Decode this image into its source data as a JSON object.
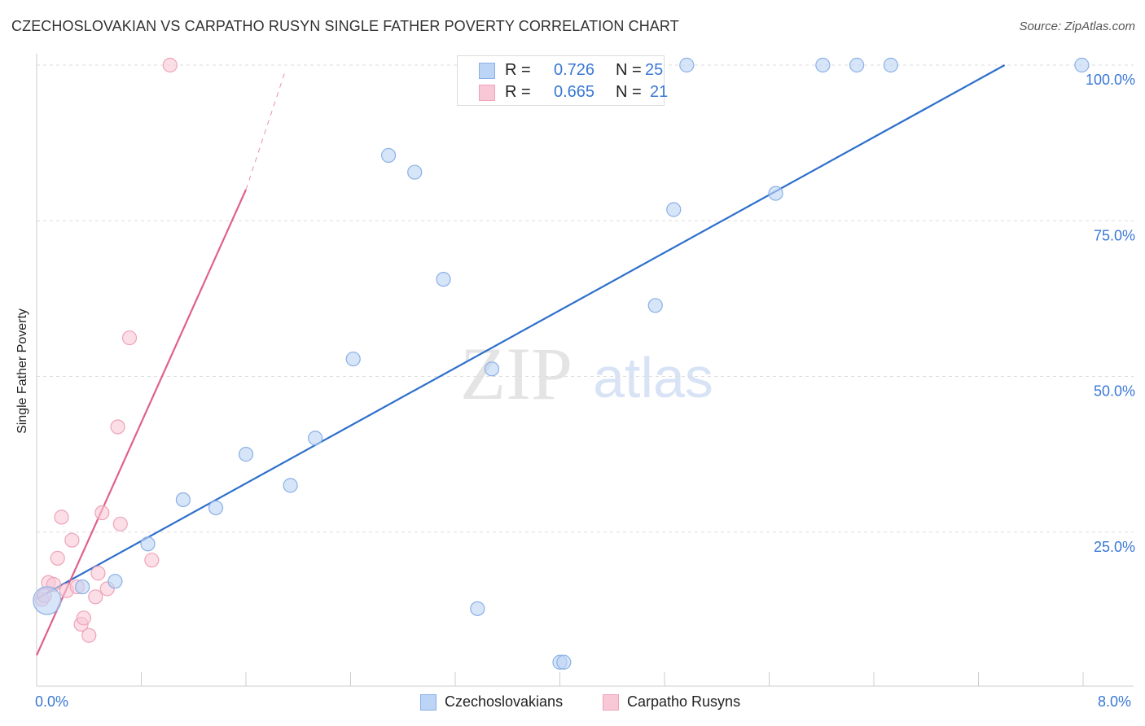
{
  "title": "CZECHOSLOVAKIAN VS CARPATHO RUSYN SINGLE FATHER POVERTY CORRELATION CHART",
  "source": "Source: ZipAtlas.com",
  "watermark": {
    "zip": "ZIP",
    "atlas": "atlas"
  },
  "colors": {
    "blue_fill": "#bcd4f5",
    "blue_stroke": "#8ab0e6",
    "blue_line": "#2d6fcc",
    "pink_fill": "#f9c8d6",
    "pink_stroke": "#eea3b9",
    "pink_line": "#e0608c",
    "accent_text": "#3a78d4",
    "grid": "#dddddd"
  },
  "legend": {
    "rows": [
      {
        "r_label": "R =",
        "r_value": "0.726",
        "n_label": "N =",
        "n_value": "25",
        "series": "blue"
      },
      {
        "r_label": "R =",
        "r_value": "0.665",
        "n_label": "N =",
        "n_value": "21",
        "series": "pink"
      }
    ]
  },
  "bottom_legend": [
    {
      "label": "Czechoslovakians",
      "series": "blue"
    },
    {
      "label": "Carpatho Rusyns",
      "series": "pink"
    }
  ],
  "x_axis_labels": {
    "min": "0.0%",
    "max": "8.0%"
  },
  "chart_data": {
    "type": "scatter",
    "title": "CZECHOSLOVAKIAN VS CARPATHO RUSYN SINGLE FATHER POVERTY CORRELATION CHART",
    "xlabel": "",
    "ylabel": "Single Father Poverty",
    "xlim": [
      0,
      8.0
    ],
    "ylim": [
      0,
      102
    ],
    "y_ticks": [
      25,
      50,
      75,
      100
    ],
    "y_tick_labels": [
      "25.0%",
      "50.0%",
      "75.0%",
      "100.0%"
    ],
    "x_tick_labels": [
      "0.0%",
      "8.0%"
    ],
    "grid": true,
    "series": [
      {
        "name": "Czechoslovakians",
        "color": "blue",
        "points": [
          {
            "x": 0.08,
            "y": 14.0,
            "big": true
          },
          {
            "x": 0.35,
            "y": 16.2
          },
          {
            "x": 0.6,
            "y": 17.1
          },
          {
            "x": 0.85,
            "y": 23.1
          },
          {
            "x": 1.12,
            "y": 30.2
          },
          {
            "x": 1.37,
            "y": 28.9
          },
          {
            "x": 1.6,
            "y": 37.5
          },
          {
            "x": 1.94,
            "y": 32.5
          },
          {
            "x": 2.13,
            "y": 40.1
          },
          {
            "x": 2.42,
            "y": 52.8
          },
          {
            "x": 2.69,
            "y": 85.5
          },
          {
            "x": 2.89,
            "y": 82.8
          },
          {
            "x": 3.11,
            "y": 65.6
          },
          {
            "x": 3.37,
            "y": 12.7
          },
          {
            "x": 3.48,
            "y": 51.2
          },
          {
            "x": 4.0,
            "y": 4.1
          },
          {
            "x": 4.03,
            "y": 4.1
          },
          {
            "x": 4.73,
            "y": 61.4
          },
          {
            "x": 4.87,
            "y": 76.8
          },
          {
            "x": 4.97,
            "y": 100.0
          },
          {
            "x": 5.65,
            "y": 79.4
          },
          {
            "x": 6.01,
            "y": 100.0
          },
          {
            "x": 6.27,
            "y": 100.0
          },
          {
            "x": 6.53,
            "y": 100.0
          },
          {
            "x": 7.99,
            "y": 100.0
          }
        ],
        "trendline": {
          "x0": 0.0,
          "y0": 14.3,
          "x1": 7.4,
          "y1": 100.0
        }
      },
      {
        "name": "Carpatho Rusyns",
        "color": "pink",
        "points": [
          {
            "x": 0.04,
            "y": 14.2
          },
          {
            "x": 0.06,
            "y": 14.8
          },
          {
            "x": 0.09,
            "y": 16.9
          },
          {
            "x": 0.13,
            "y": 16.6
          },
          {
            "x": 0.16,
            "y": 20.8
          },
          {
            "x": 0.19,
            "y": 27.4
          },
          {
            "x": 0.23,
            "y": 15.6
          },
          {
            "x": 0.27,
            "y": 23.7
          },
          {
            "x": 0.31,
            "y": 16.2
          },
          {
            "x": 0.34,
            "y": 10.2
          },
          {
            "x": 0.36,
            "y": 11.2
          },
          {
            "x": 0.4,
            "y": 8.4
          },
          {
            "x": 0.45,
            "y": 14.6
          },
          {
            "x": 0.47,
            "y": 18.4
          },
          {
            "x": 0.5,
            "y": 28.1
          },
          {
            "x": 0.54,
            "y": 15.9
          },
          {
            "x": 0.62,
            "y": 41.9
          },
          {
            "x": 0.64,
            "y": 26.3
          },
          {
            "x": 0.71,
            "y": 56.2
          },
          {
            "x": 0.88,
            "y": 20.5
          },
          {
            "x": 1.02,
            "y": 100.0
          }
        ],
        "trendline": {
          "x0": 0.0,
          "y0": 5.2,
          "x1": 1.6,
          "y1": 80.0
        },
        "trendline_extension": {
          "x0": 1.6,
          "y0": 80.0,
          "x1": 1.9,
          "y1": 99.0
        }
      }
    ]
  }
}
